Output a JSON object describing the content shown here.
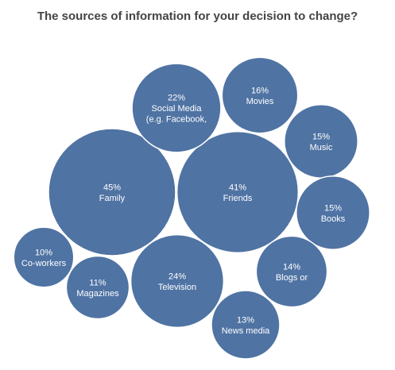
{
  "chart_data": {
    "type": "bubble",
    "title": "The sources of information for your decision to change?",
    "bubble_color": "#4F73A3",
    "value_suffix": "%",
    "items": [
      {
        "label": "Family",
        "value": 45
      },
      {
        "label": "Friends",
        "value": 41
      },
      {
        "label": "Television",
        "value": 24
      },
      {
        "label": "Social Media (e.g. Facebook,",
        "value": 22
      },
      {
        "label": "Movies",
        "value": 16
      },
      {
        "label": "Music",
        "value": 15
      },
      {
        "label": "Books",
        "value": 15
      },
      {
        "label": "Blogs or",
        "value": 14
      },
      {
        "label": "News media",
        "value": 13
      },
      {
        "label": "Magazines",
        "value": 11
      },
      {
        "label": "Co-workers",
        "value": 10
      }
    ]
  }
}
